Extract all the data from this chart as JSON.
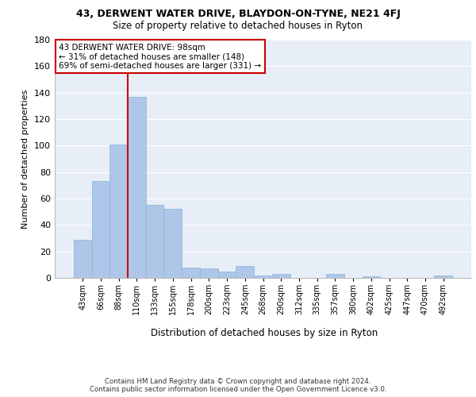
{
  "title1": "43, DERWENT WATER DRIVE, BLAYDON-ON-TYNE, NE21 4FJ",
  "title2": "Size of property relative to detached houses in Ryton",
  "xlabel": "Distribution of detached houses by size in Ryton",
  "ylabel": "Number of detached properties",
  "bar_labels": [
    "43sqm",
    "66sqm",
    "88sqm",
    "110sqm",
    "133sqm",
    "155sqm",
    "178sqm",
    "200sqm",
    "223sqm",
    "245sqm",
    "268sqm",
    "290sqm",
    "312sqm",
    "335sqm",
    "357sqm",
    "380sqm",
    "402sqm",
    "425sqm",
    "447sqm",
    "470sqm",
    "492sqm"
  ],
  "bar_values": [
    29,
    73,
    101,
    137,
    55,
    52,
    8,
    7,
    5,
    9,
    2,
    3,
    0,
    0,
    3,
    0,
    1,
    0,
    0,
    0,
    2
  ],
  "bar_color": "#aec6e8",
  "bar_edge_color": "#8ab4d8",
  "bg_color": "#e8eef8",
  "grid_color": "#ffffff",
  "vline_x": 2.5,
  "vline_color": "#cc0000",
  "annotation_text": "43 DERWENT WATER DRIVE: 98sqm\n← 31% of detached houses are smaller (148)\n69% of semi-detached houses are larger (331) →",
  "annotation_box_color": "#cc0000",
  "ylim": [
    0,
    180
  ],
  "yticks": [
    0,
    20,
    40,
    60,
    80,
    100,
    120,
    140,
    160,
    180
  ],
  "footnote": "Contains HM Land Registry data © Crown copyright and database right 2024.\nContains public sector information licensed under the Open Government Licence v3.0."
}
